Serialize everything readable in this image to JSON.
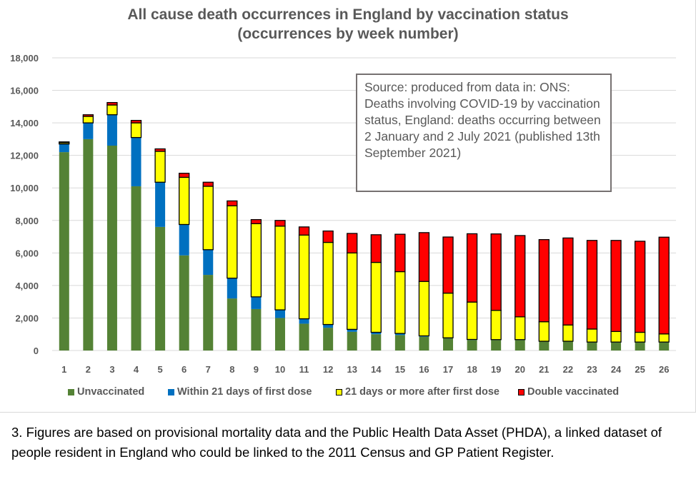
{
  "chart_data": {
    "type": "bar",
    "stacked": true,
    "title": "All cause death occurrences in England by vaccination status",
    "subtitle": "(occurrences by week number)",
    "xlabel": "",
    "ylabel": "",
    "ylim": [
      0,
      18000
    ],
    "yticks": [
      0,
      2000,
      4000,
      6000,
      8000,
      10000,
      12000,
      14000,
      16000,
      18000
    ],
    "ytick_labels": [
      "0",
      "2,000",
      "4,000",
      "6,000",
      "8,000",
      "10,000",
      "12,000",
      "14,000",
      "16,000",
      "18,000"
    ],
    "grid": true,
    "legend_position": "bottom",
    "categories": [
      "1",
      "2",
      "3",
      "4",
      "5",
      "6",
      "7",
      "8",
      "9",
      "10",
      "11",
      "12",
      "13",
      "14",
      "15",
      "16",
      "17",
      "18",
      "19",
      "20",
      "21",
      "22",
      "23",
      "24",
      "25",
      "26"
    ],
    "series": [
      {
        "name": "Unvaccinated",
        "color": "#548235",
        "values": [
          12200,
          13000,
          12600,
          10100,
          7600,
          5850,
          4650,
          3200,
          2550,
          2000,
          1650,
          1400,
          1150,
          1000,
          950,
          850,
          750,
          650,
          650,
          650,
          550,
          550,
          500,
          500,
          500,
          500
        ]
      },
      {
        "name": "Within 21 days of first dose",
        "color": "#0070C0",
        "values": [
          500,
          1000,
          1900,
          3000,
          2750,
          1900,
          1550,
          1250,
          750,
          500,
          300,
          200,
          150,
          120,
          100,
          50,
          30,
          30,
          20,
          20,
          20,
          20,
          20,
          20,
          20,
          20
        ]
      },
      {
        "name": "21 days or more after first dose",
        "color": "#FFFF00",
        "values": [
          80,
          400,
          600,
          900,
          1900,
          2900,
          3900,
          4450,
          4500,
          5150,
          5150,
          5050,
          4700,
          4300,
          3800,
          3350,
          2750,
          2300,
          1800,
          1400,
          1200,
          1000,
          800,
          650,
          600,
          500
        ]
      },
      {
        "name": "Double vaccinated",
        "color": "#FF0000",
        "values": [
          50,
          100,
          150,
          150,
          150,
          250,
          250,
          300,
          250,
          350,
          500,
          700,
          1200,
          1700,
          2300,
          3000,
          3450,
          4200,
          4700,
          5000,
          5050,
          5350,
          5450,
          5600,
          5600,
          5950
        ]
      }
    ],
    "annotation": "Source: produced from data in: ONS: Deaths involving COVID-19 by vaccination status, England: deaths occurring between 2 January and 2 July 2021 (published 13th September 2021)"
  },
  "title_line1": "All cause death occurrences in England by vaccination status",
  "title_line2": "(occurrences by week number)",
  "source_box": "Source: produced from data in: ONS: Deaths involving COVID-19 by vaccination status, England: deaths occurring between 2 January and 2 July 2021 (published 13th September 2021)",
  "legend": [
    {
      "label": "Unvaccinated",
      "color": "#548235"
    },
    {
      "label": "Within 21 days of first dose",
      "color": "#0070C0"
    },
    {
      "label": "21 days or more after first dose",
      "color": "#FFFF00"
    },
    {
      "label": "Double vaccinated",
      "color": "#FF0000"
    }
  ],
  "footnote": "3. Figures are based on provisional mortality data and the Public Health Data Asset (PHDA), a linked dataset of people resident in England who could be linked to the 2011 Census and GP Patient Register."
}
